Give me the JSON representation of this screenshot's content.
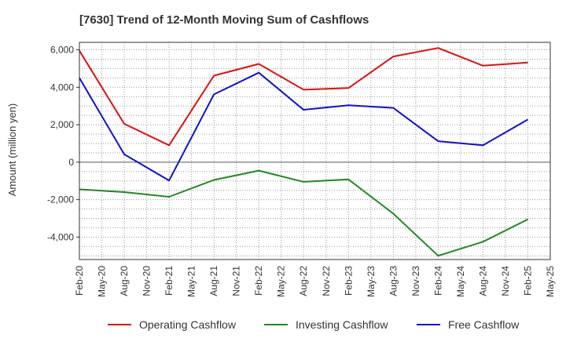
{
  "chart_data": {
    "type": "line",
    "title": "[7630]  Trend of 12-Month Moving Sum of Cashflows",
    "xlabel": "",
    "ylabel": "Amount (million yen)",
    "categories": [
      "Feb-20",
      "May-20",
      "Aug-20",
      "Nov-20",
      "Feb-21",
      "May-21",
      "Aug-21",
      "Nov-21",
      "Feb-22",
      "May-22",
      "Aug-22",
      "Nov-22",
      "Feb-23",
      "May-23",
      "Aug-23",
      "Nov-23",
      "Feb-24",
      "May-24",
      "Aug-24",
      "Nov-24",
      "Feb-25",
      "May-25"
    ],
    "yticks": [
      -4000,
      -2000,
      0,
      2000,
      4000,
      6000
    ],
    "ytick_labels": [
      "-4,000",
      "-2,000",
      "0",
      "2,000",
      "4,000",
      "6,000"
    ],
    "ylim": [
      -5200,
      6400
    ],
    "grid": true,
    "legend_position": "bottom",
    "series": [
      {
        "name": "Operating Cashflow",
        "color": "#dd1111",
        "values": [
          5950,
          null,
          2050,
          null,
          900,
          null,
          4620,
          null,
          5250,
          null,
          3870,
          null,
          3960,
          null,
          5640,
          null,
          6100,
          null,
          5150,
          null,
          5320,
          null
        ]
      },
      {
        "name": "Investing Cashflow",
        "color": "#228822",
        "values": [
          -1450,
          null,
          -1600,
          null,
          -1850,
          null,
          -950,
          null,
          -450,
          null,
          -1050,
          null,
          -920,
          null,
          -2750,
          null,
          -5000,
          null,
          -4250,
          null,
          -3050,
          null
        ]
      },
      {
        "name": "Free Cashflow",
        "color": "#1111cc",
        "values": [
          4500,
          null,
          420,
          null,
          -980,
          null,
          3620,
          null,
          4780,
          null,
          2800,
          null,
          3040,
          null,
          2900,
          null,
          1120,
          null,
          900,
          null,
          2280,
          null
        ]
      }
    ]
  }
}
